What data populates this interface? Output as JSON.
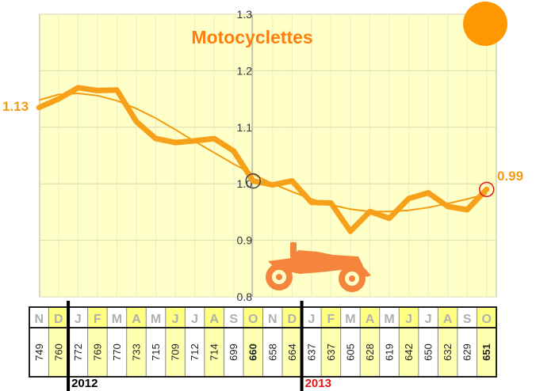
{
  "chart_data": {
    "type": "line",
    "title": "Motocyclettes",
    "ylim": [
      0.8,
      1.3
    ],
    "yticks": [
      "0.8",
      "0.9",
      "1.0",
      "1.1",
      "1.2",
      "1.3"
    ],
    "grid": true,
    "series": [
      {
        "values": [
          1.135,
          1.15,
          1.17,
          1.165,
          1.166,
          1.11,
          1.08,
          1.073,
          1.076,
          1.08,
          1.058,
          1.005,
          0.998,
          1.005,
          0.967,
          0.966,
          0.916,
          0.951,
          0.939,
          0.974,
          0.984,
          0.96,
          0.954,
          0.99
        ]
      },
      {
        "values": [
          1.148,
          1.158,
          1.16,
          1.156,
          1.147,
          1.133,
          1.116,
          1.096,
          1.075,
          1.055,
          1.035,
          1.017,
          1.0,
          0.986,
          0.973,
          0.963,
          0.955,
          0.951,
          0.951,
          0.953,
          0.958,
          0.965,
          0.973,
          0.982
        ]
      }
    ],
    "start_label": "1.13",
    "end_label": "0.99",
    "months": [
      "N",
      "D",
      "J",
      "F",
      "M",
      "A",
      "M",
      "J",
      "J",
      "A",
      "S",
      "O",
      "N",
      "D",
      "J",
      "F",
      "M",
      "A",
      "M",
      "J",
      "J",
      "A",
      "S",
      "O"
    ],
    "counts": [
      "749",
      "760",
      "772",
      "769",
      "770",
      "733",
      "715",
      "709",
      "712",
      "714",
      "699",
      "660",
      "658",
      "664",
      "637",
      "637",
      "605",
      "628",
      "619",
      "642",
      "650",
      "632",
      "629",
      "651"
    ],
    "highlighted_columns": [
      1,
      3,
      5,
      7,
      9,
      11,
      13,
      15,
      17,
      19,
      21,
      23
    ],
    "bold_counts": [
      11,
      23
    ],
    "years": [
      "2012",
      "2013"
    ]
  },
  "colors": {
    "plot_bg": "#ffffc8",
    "main_line": "#f7a01a",
    "trend_line": "#f39c12",
    "accent": "#ff8c00",
    "highlight": "#ffff80",
    "red": "#e01818"
  },
  "icons": [
    "motorcycle-icon",
    "sun-icon"
  ]
}
